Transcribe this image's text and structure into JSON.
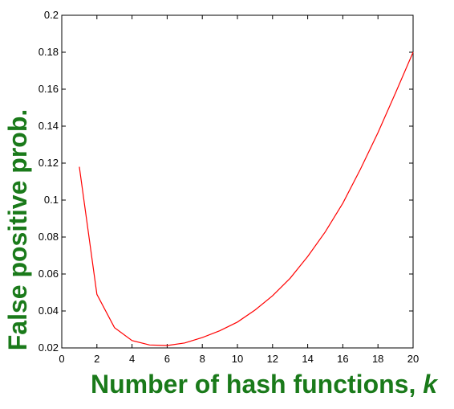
{
  "chart_data": {
    "type": "line",
    "title": "",
    "xlabel": "Number of hash functions, ",
    "xlabel_var": "k",
    "ylabel": "False positive prob.",
    "xlim": [
      0,
      20
    ],
    "ylim": [
      0.02,
      0.2
    ],
    "x_ticks": [
      0,
      2,
      4,
      6,
      8,
      10,
      12,
      14,
      16,
      18,
      20
    ],
    "y_ticks": [
      0.02,
      0.04,
      0.06,
      0.08,
      0.1,
      0.12,
      0.14,
      0.16,
      0.18,
      0.2
    ],
    "x_tick_labels": [
      "0",
      "2",
      "4",
      "6",
      "8",
      "10",
      "12",
      "14",
      "16",
      "18",
      "20"
    ],
    "y_tick_labels": [
      "0.02",
      "0.04",
      "0.06",
      "0.08",
      "0.1",
      "0.12",
      "0.14",
      "0.16",
      "0.18",
      "0.2"
    ],
    "grid": false,
    "series": [
      {
        "color": "#ff0000",
        "x": [
          1,
          2,
          3,
          4,
          5,
          6,
          7,
          8,
          9,
          10,
          11,
          12,
          13,
          14,
          15,
          16,
          17,
          18,
          19,
          20
        ],
        "y": [
          0.118,
          0.049,
          0.031,
          0.024,
          0.0216,
          0.0213,
          0.0227,
          0.0256,
          0.0293,
          0.034,
          0.0405,
          0.0482,
          0.0577,
          0.0695,
          0.0828,
          0.0983,
          0.1167,
          0.1365,
          0.158,
          0.18
        ]
      }
    ]
  },
  "colors": {
    "axis": "#000000",
    "label": "#1a7a1a",
    "line": "#ff0000"
  }
}
